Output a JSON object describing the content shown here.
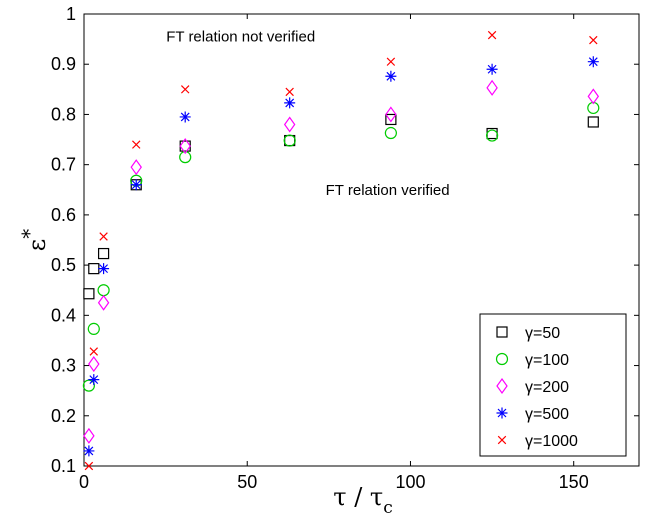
{
  "chart_data": {
    "type": "scatter",
    "xlabel": "τ / τ",
    "xlabel_sub": "c",
    "ylabel": "ε",
    "ylabel_sup": "*",
    "xlim": [
      0,
      170
    ],
    "ylim": [
      0.1,
      1.0
    ],
    "xticks": [
      0,
      50,
      100,
      150
    ],
    "xtick_labels": [
      "0",
      "50",
      "100",
      "150"
    ],
    "yticks": [
      0.1,
      0.2,
      0.3,
      0.4,
      0.5,
      0.6,
      0.7,
      0.8,
      0.9,
      1.0
    ],
    "ytick_labels": [
      "0.1",
      "0.2",
      "0.3",
      "0.4",
      "0.5",
      "0.6",
      "0.7",
      "0.8",
      "0.9",
      "1"
    ],
    "grid": false,
    "legend_position": "bottom-right",
    "annotations": [
      {
        "text": "FT relation not verified",
        "x": 48,
        "y": 0.955
      },
      {
        "text": "FT relation verified",
        "x": 93,
        "y": 0.65
      }
    ],
    "series": [
      {
        "name": "γ=50",
        "marker": "square",
        "color": "#000000",
        "x": [
          1.5,
          3,
          6,
          16,
          31,
          63,
          94,
          125,
          156
        ],
        "y": [
          0.443,
          0.493,
          0.523,
          0.66,
          0.737,
          0.748,
          0.79,
          0.762,
          0.785
        ]
      },
      {
        "name": "γ=100",
        "marker": "circle",
        "color": "#00cc00",
        "x": [
          1.5,
          3,
          6,
          16,
          31,
          63,
          94,
          125,
          156
        ],
        "y": [
          0.26,
          0.373,
          0.45,
          0.668,
          0.715,
          0.748,
          0.763,
          0.758,
          0.813
        ]
      },
      {
        "name": "γ=200",
        "marker": "diamond",
        "color": "#ff00ff",
        "x": [
          1.5,
          3,
          6,
          16,
          31,
          63,
          94,
          125,
          156
        ],
        "y": [
          0.16,
          0.303,
          0.425,
          0.695,
          0.737,
          0.78,
          0.8,
          0.853,
          0.836
        ]
      },
      {
        "name": "γ=500",
        "marker": "star",
        "color": "#0000ff",
        "x": [
          1.5,
          3,
          6,
          16,
          31,
          63,
          94,
          125,
          156
        ],
        "y": [
          0.13,
          0.272,
          0.493,
          0.66,
          0.795,
          0.823,
          0.876,
          0.89,
          0.905
        ]
      },
      {
        "name": "γ=1000",
        "marker": "x",
        "color": "#ff0000",
        "x": [
          1.5,
          3,
          6,
          16,
          31,
          63,
          94,
          125,
          156
        ],
        "y": [
          0.1,
          0.328,
          0.557,
          0.74,
          0.85,
          0.845,
          0.905,
          0.958,
          0.948
        ]
      }
    ]
  }
}
